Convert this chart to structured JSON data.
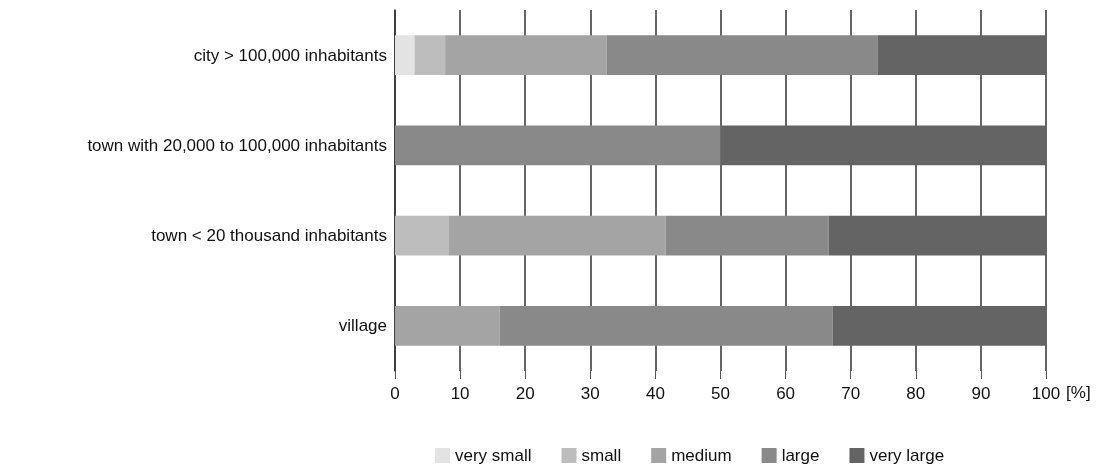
{
  "chart_data": {
    "type": "bar",
    "orientation": "horizontal",
    "stacked": true,
    "xlabel": "[%]",
    "categories": [
      "city > 100,000 inhabitants",
      "town with 20,000 to 100,000 inhabitants",
      "town < 20 thousand inhabitants",
      "village"
    ],
    "series": [
      {
        "name": "very small",
        "color": "#e3e3e3",
        "values": [
          3.0,
          null,
          null,
          null
        ]
      },
      {
        "name": "small",
        "color": "#bdbdbd",
        "values": [
          4.7,
          null,
          8.3,
          null
        ]
      },
      {
        "name": "medium",
        "color": "#a4a4a4",
        "values": [
          24.8,
          null,
          33.3,
          16.1
        ]
      },
      {
        "name": "large",
        "color": "#898989",
        "values": [
          41.6,
          50,
          25,
          51.1
        ]
      },
      {
        "name": "very large",
        "color": "#646464",
        "values": [
          25.9,
          50,
          33.4,
          32.8
        ]
      }
    ],
    "xlim": [
      0,
      100
    ],
    "xticks": [
      0,
      10,
      20,
      30,
      40,
      50,
      60,
      70,
      80,
      90,
      100
    ],
    "grid": "x",
    "legend": "bottom"
  }
}
